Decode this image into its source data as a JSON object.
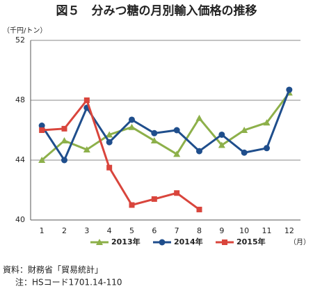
{
  "chart_data": {
    "type": "line",
    "title": "図５　分みつ糖の月別輸入価格の推移",
    "y_label": "（千円/トン）",
    "x_label": "（月）",
    "categories": [
      "1",
      "2",
      "3",
      "4",
      "5",
      "6",
      "7",
      "8",
      "9",
      "10",
      "11",
      "12"
    ],
    "series": [
      {
        "name": "2013年",
        "color": "#8db04a",
        "marker": "triangle",
        "values": [
          44.0,
          45.3,
          44.7,
          45.7,
          46.2,
          45.3,
          44.4,
          46.8,
          45.0,
          46.0,
          46.5,
          48.5
        ]
      },
      {
        "name": "2014年",
        "color": "#1f4e8c",
        "marker": "circle",
        "values": [
          46.3,
          44.0,
          47.5,
          45.2,
          46.7,
          45.8,
          46.0,
          44.6,
          45.7,
          44.5,
          44.8,
          48.7
        ]
      },
      {
        "name": "2015年",
        "color": "#d9453c",
        "marker": "square",
        "values": [
          46.0,
          46.1,
          48.0,
          43.5,
          41.0,
          41.4,
          41.8,
          40.7,
          null,
          null,
          null,
          null
        ]
      }
    ],
    "ylim": [
      40,
      52
    ],
    "yticks": [
      40,
      44,
      48,
      52
    ],
    "grid": true,
    "legend": "bottom",
    "notes": [
      "資料：財務省「貿易統計」",
      "注：HSコード1701.14-110"
    ]
  }
}
